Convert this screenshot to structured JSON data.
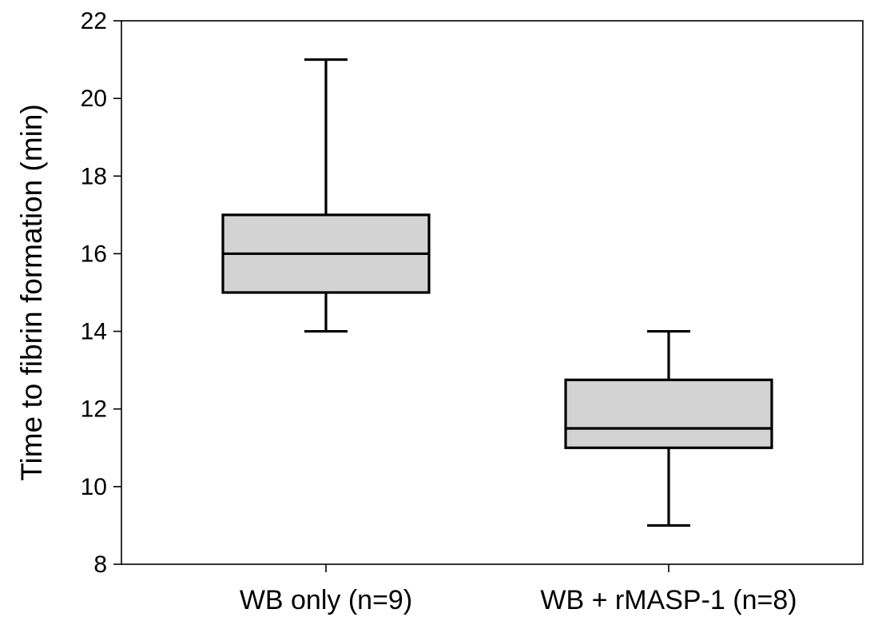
{
  "chart_data": {
    "type": "box",
    "title": "",
    "xlabel": "",
    "ylabel": "Time to fibrin formation (min)",
    "ylim": [
      8,
      22
    ],
    "yticks": [
      8,
      10,
      12,
      14,
      16,
      18,
      20,
      22
    ],
    "ytick_labels": [
      "8",
      "10",
      "12",
      "14",
      "16",
      "18",
      "20",
      "22"
    ],
    "grid": false,
    "legend": "none",
    "categories": [
      "WB only (n=9)",
      "WB + rMASP-1 (n=8)"
    ],
    "boxes": [
      {
        "category": "WB only (n=9)",
        "whisker_low": 14,
        "q1": 15,
        "median": 16,
        "q3": 17,
        "whisker_high": 21
      },
      {
        "category": "WB + rMASP-1 (n=8)",
        "whisker_low": 9,
        "q1": 11,
        "median": 11.5,
        "q3": 12.75,
        "whisker_high": 14
      }
    ],
    "colors": {
      "box_fill": "#d3d3d3",
      "stroke": "#000000",
      "background": "#ffffff"
    }
  }
}
